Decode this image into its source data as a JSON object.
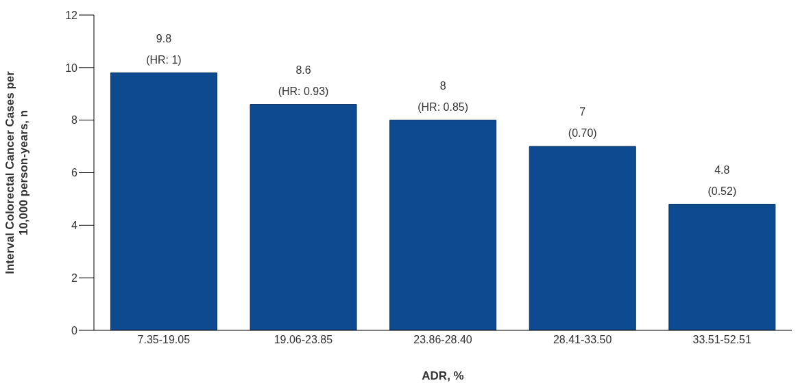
{
  "chart_data": {
    "type": "bar",
    "xlabel": "ADR, %",
    "ylabel": "Interval Colorectal Cancer Cases per\n10,000 person-years, n",
    "categories": [
      "7.35-19.05",
      "19.06-23.85",
      "23.86-28.40",
      "28.41-33.50",
      "33.51-52.51"
    ],
    "values": [
      9.8,
      8.6,
      8,
      7,
      4.8
    ],
    "color": "#0d4a8f",
    "ylim": [
      0,
      12
    ],
    "yticks": [
      0,
      2,
      4,
      6,
      8,
      10,
      12
    ],
    "grid": false,
    "legend": false,
    "data_labels": true,
    "annotations": [
      {
        "text": "(HR: 1)",
        "x": "7.35-19.05",
        "y": 9.8
      },
      {
        "text": "(HR: 0.93)",
        "x": "19.06-23.85",
        "y": 8.6
      },
      {
        "text": "(HR: 0.85)",
        "x": "23.86-28.40",
        "y": 8
      },
      {
        "text": "(0.70)",
        "x": "28.41-33.50",
        "y": 7
      },
      {
        "text": "(0.52)",
        "x": "33.51-52.51",
        "y": 4.8
      }
    ]
  }
}
